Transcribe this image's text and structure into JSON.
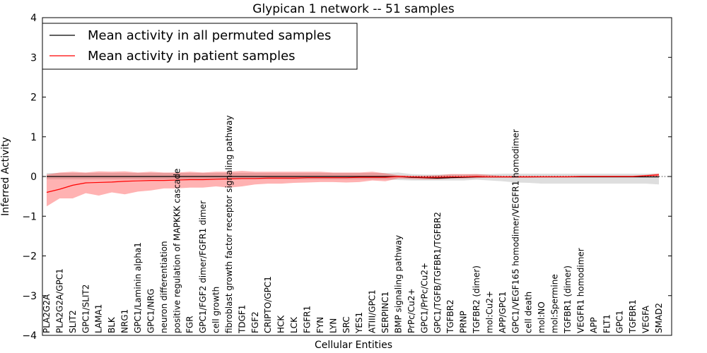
{
  "chart_data": {
    "type": "line",
    "title": "Glypican 1 network -- 51 samples",
    "xlabel": "Cellular Entities",
    "ylabel": "Inferred Activity",
    "ylim": [
      -4,
      4
    ],
    "yticks": [
      "4",
      "3",
      "2",
      "1",
      "0",
      "−1",
      "−2",
      "−3",
      "−4"
    ],
    "ytick_values": [
      4,
      3,
      2,
      1,
      0,
      -1,
      -2,
      -3,
      -4
    ],
    "grid": false,
    "legend_position": "top-left",
    "categories": [
      "PLA2G2A",
      "PLA2G2A/GPC1",
      "SLIT2",
      "GPC1/SLIT2",
      "LAMA1",
      "BLK",
      "NRG1",
      "GPC1/Laminin alpha1",
      "GPC1/NRG",
      "neuron differentiation",
      "positive regulation of MAPKKK cascade",
      "FGR",
      "GPC1/FGF2 dimer/FGFR1 dimer",
      "cell growth",
      "fibroblast growth factor receptor signaling pathway",
      "TDGF1",
      "FGF2",
      "CRIPTO/GPC1",
      "HCK",
      "LCK",
      "FGFR1",
      "FYN",
      "LYN",
      "SRC",
      "YES1",
      "ATIII/GPC1",
      "SERPINC1",
      "BMP signaling pathway",
      "PrPc/Cu2+",
      "GPC1/PrPc/Cu2+",
      "GPC1/TGFB/TGFBR1/TGFBR2",
      "TGFBR2",
      "PRNP",
      "TGFBR2 (dimer)",
      "mol:Cu2+",
      "APP/GPC1",
      "GPC1/VEGF165 homodimer/VEGFR1 homodimer",
      "cell death",
      "mol:NO",
      "mol:Spermine",
      "TGFBR1 (dimer)",
      "VEGFR1 homodimer",
      "APP",
      "FLT1",
      "GPC1",
      "TGFBR1",
      "VEGFA",
      "SMAD2"
    ],
    "series": [
      {
        "name": "Mean activity in all permuted samples",
        "color": "#000000",
        "values": [
          0,
          0,
          0,
          0,
          0,
          0,
          0,
          0,
          0,
          0,
          0,
          0,
          0,
          0,
          0,
          0,
          0,
          0,
          0,
          0,
          0,
          0,
          0,
          0,
          0,
          0,
          0,
          0,
          -0.02,
          -0.03,
          -0.04,
          -0.03,
          -0.02,
          -0.01,
          -0.01,
          -0.01,
          -0.01,
          -0.01,
          -0.01,
          -0.01,
          -0.01,
          -0.01,
          -0.01,
          -0.01,
          -0.01,
          -0.01,
          -0.01,
          -0.01
        ],
        "lower": [
          -0.07,
          -0.07,
          -0.07,
          -0.07,
          -0.07,
          -0.07,
          -0.07,
          -0.07,
          -0.07,
          -0.07,
          -0.07,
          -0.07,
          -0.07,
          -0.07,
          -0.07,
          -0.07,
          -0.07,
          -0.07,
          -0.07,
          -0.07,
          -0.07,
          -0.07,
          -0.07,
          -0.07,
          -0.07,
          -0.07,
          -0.07,
          -0.09,
          -0.1,
          -0.1,
          -0.1,
          -0.1,
          -0.1,
          -0.08,
          -0.1,
          -0.12,
          -0.15,
          -0.16,
          -0.18,
          -0.18,
          -0.18,
          -0.18,
          -0.18,
          -0.18,
          -0.18,
          -0.18,
          -0.18,
          -0.2
        ],
        "upper": [
          0.09,
          0.09,
          0.09,
          0.09,
          0.09,
          0.09,
          0.09,
          0.09,
          0.09,
          0.09,
          0.09,
          0.09,
          0.09,
          0.09,
          0.09,
          0.09,
          0.09,
          0.09,
          0.09,
          0.09,
          0.09,
          0.09,
          0.09,
          0.09,
          0.09,
          0.09,
          0.09,
          0.1,
          0.06,
          0.05,
          0.05,
          0.05,
          0.05,
          0.06,
          0.06,
          0.07,
          0.07,
          0.07,
          0.07,
          0.07,
          0.07,
          0.07,
          0.07,
          0.07,
          0.07,
          0.07,
          0.07,
          0.07
        ]
      },
      {
        "name": "Mean activity in patient samples",
        "color": "#ff0000",
        "values": [
          -0.4,
          -0.32,
          -0.22,
          -0.16,
          -0.15,
          -0.14,
          -0.12,
          -0.11,
          -0.1,
          -0.1,
          -0.09,
          -0.08,
          -0.08,
          -0.07,
          -0.06,
          -0.05,
          -0.05,
          -0.04,
          -0.04,
          -0.04,
          -0.03,
          -0.03,
          -0.03,
          -0.03,
          -0.02,
          -0.02,
          -0.02,
          0.0,
          -0.01,
          -0.02,
          -0.02,
          -0.01,
          -0.01,
          0.0,
          -0.01,
          -0.01,
          -0.01,
          -0.01,
          -0.01,
          -0.01,
          -0.01,
          0.0,
          0.0,
          0.0,
          0.0,
          0.0,
          0.02,
          0.04
        ],
        "lower": [
          -0.75,
          -0.55,
          -0.55,
          -0.42,
          -0.48,
          -0.4,
          -0.45,
          -0.38,
          -0.35,
          -0.3,
          -0.3,
          -0.28,
          -0.28,
          -0.25,
          -0.28,
          -0.25,
          -0.2,
          -0.18,
          -0.18,
          -0.16,
          -0.15,
          -0.14,
          -0.14,
          -0.15,
          -0.14,
          -0.1,
          -0.12,
          -0.05,
          -0.06,
          -0.07,
          -0.07,
          -0.05,
          -0.05,
          -0.04,
          -0.03,
          -0.03,
          -0.03,
          -0.03,
          -0.02,
          -0.02,
          -0.02,
          -0.02,
          -0.02,
          -0.02,
          -0.02,
          -0.02,
          -0.02,
          -0.02
        ],
        "upper": [
          0.05,
          0.1,
          0.12,
          0.1,
          0.13,
          0.12,
          0.13,
          0.1,
          0.12,
          0.1,
          0.1,
          0.12,
          0.1,
          0.12,
          0.12,
          0.14,
          0.12,
          0.12,
          0.12,
          0.12,
          0.12,
          0.12,
          0.1,
          0.1,
          0.1,
          0.12,
          0.08,
          0.03,
          0.02,
          0.02,
          0.03,
          0.06,
          0.06,
          0.06,
          0.04,
          0.02,
          0.02,
          0.02,
          0.02,
          0.02,
          0.02,
          0.02,
          0.02,
          0.02,
          0.02,
          0.02,
          0.04,
          0.08
        ]
      }
    ]
  }
}
